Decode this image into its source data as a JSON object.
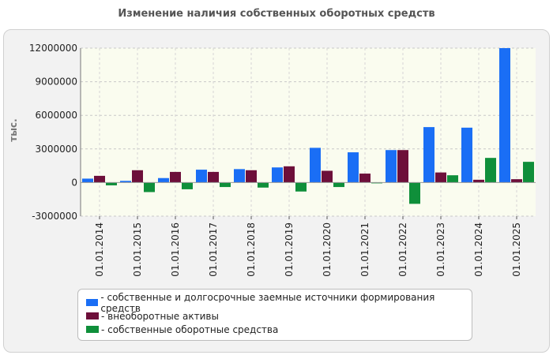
{
  "chart_data": {
    "type": "bar",
    "title": "Изменение наличия собственных оборотных средств",
    "ylabel": "тыс.",
    "xlabel": "",
    "categories": [
      "01.01.2014",
      "01.01.2015",
      "01.01.2016",
      "01.01.2017",
      "01.01.2018",
      "01.01.2019",
      "01.01.2020",
      "01.01.2021",
      "01.01.2022",
      "01.01.2023",
      "01.01.2024",
      "01.01.2025"
    ],
    "ylim": [
      -3000000,
      12000000
    ],
    "yticks": [
      -3000000,
      0,
      3000000,
      6000000,
      9000000,
      12000000
    ],
    "ytick_labels": [
      "-3000000",
      "0",
      "3000000",
      "6000000",
      "9000000",
      "12000000"
    ],
    "grid": true,
    "legend_position": "bottom",
    "series": [
      {
        "name": "- собственные и долгосрочные заемные источники формирования средств",
        "color": "#1a6ef5",
        "values": [
          350000,
          150000,
          400000,
          1150000,
          1200000,
          1350000,
          3100000,
          2700000,
          2900000,
          4950000,
          4900000,
          12000000
        ]
      },
      {
        "name": "- внеоборотные активы",
        "color": "#6d0f3a",
        "values": [
          600000,
          1100000,
          950000,
          950000,
          1100000,
          1450000,
          1050000,
          800000,
          2900000,
          900000,
          250000,
          300000
        ]
      },
      {
        "name": "- собственные оборотные средства",
        "color": "#0f8f3a",
        "values": [
          -250000,
          -850000,
          -600000,
          -400000,
          -450000,
          -800000,
          -400000,
          -50000,
          -1900000,
          650000,
          2200000,
          1850000
        ]
      }
    ]
  }
}
